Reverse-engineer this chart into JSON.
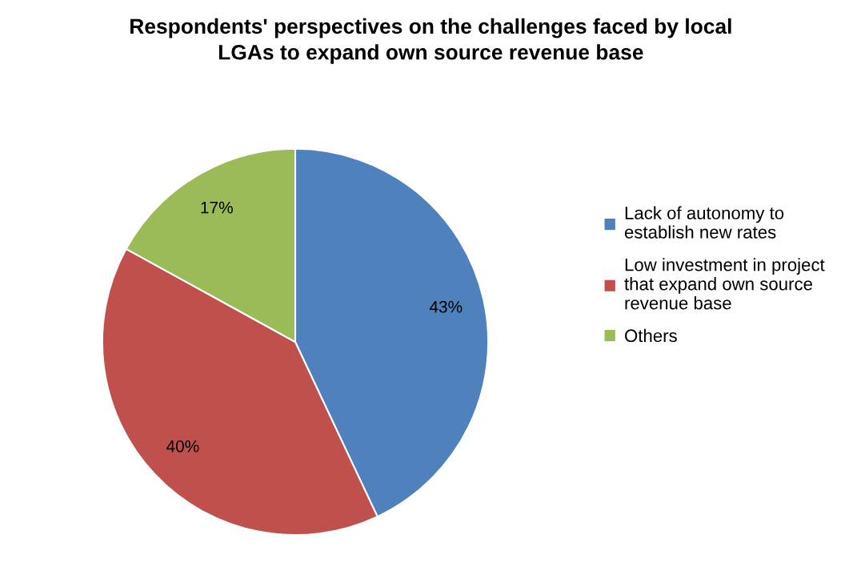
{
  "chart_data": {
    "type": "pie",
    "title": "Respondents' perspectives on the challenges faced by local\nLGAs to expand own source revenue base",
    "categories": [
      "Lack of autonomy to\nestablish new rates",
      "Low investment in project\nthat expand own source\nrevenue base",
      "Others"
    ],
    "values": [
      43,
      40,
      17
    ],
    "colors": [
      "#4f81bd",
      "#c0504d",
      "#9bbb59"
    ],
    "value_labels": [
      "43%",
      "40%",
      "17%"
    ],
    "legend": "right"
  }
}
